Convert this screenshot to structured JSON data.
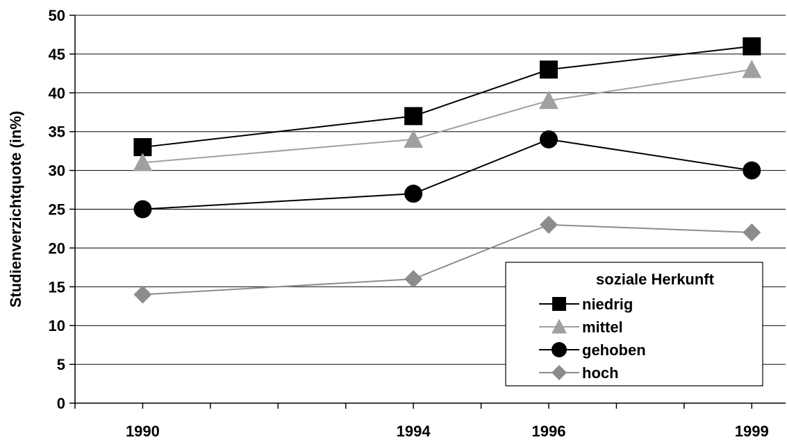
{
  "chart_data": {
    "type": "line",
    "x": [
      1990,
      1994,
      1996,
      1999
    ],
    "x_tick_labels": [
      "1990",
      "1994",
      "1996",
      "1999"
    ],
    "xlim": [
      1989,
      1999.5
    ],
    "ylabel": "Studienverzichtquote (in%)",
    "xlabel": "",
    "ylim": [
      0,
      50
    ],
    "y_ticks": [
      0,
      5,
      10,
      15,
      20,
      25,
      30,
      35,
      40,
      45,
      50
    ],
    "grid": "horizontal",
    "legend": {
      "title": "soziale Herkunft",
      "placement": "bottom-right"
    },
    "series": [
      {
        "name": "niedrig",
        "values": [
          33,
          37,
          43,
          46
        ],
        "color": "#000000",
        "marker": "square"
      },
      {
        "name": "mittel",
        "values": [
          31,
          34,
          39,
          43
        ],
        "color": "#a0a0a0",
        "marker": "triangle"
      },
      {
        "name": "gehoben",
        "values": [
          25,
          27,
          34,
          30
        ],
        "color": "#000000",
        "marker": "circle"
      },
      {
        "name": "hoch",
        "values": [
          14,
          16,
          23,
          22
        ],
        "color": "#8c8c8c",
        "marker": "diamond"
      }
    ]
  }
}
